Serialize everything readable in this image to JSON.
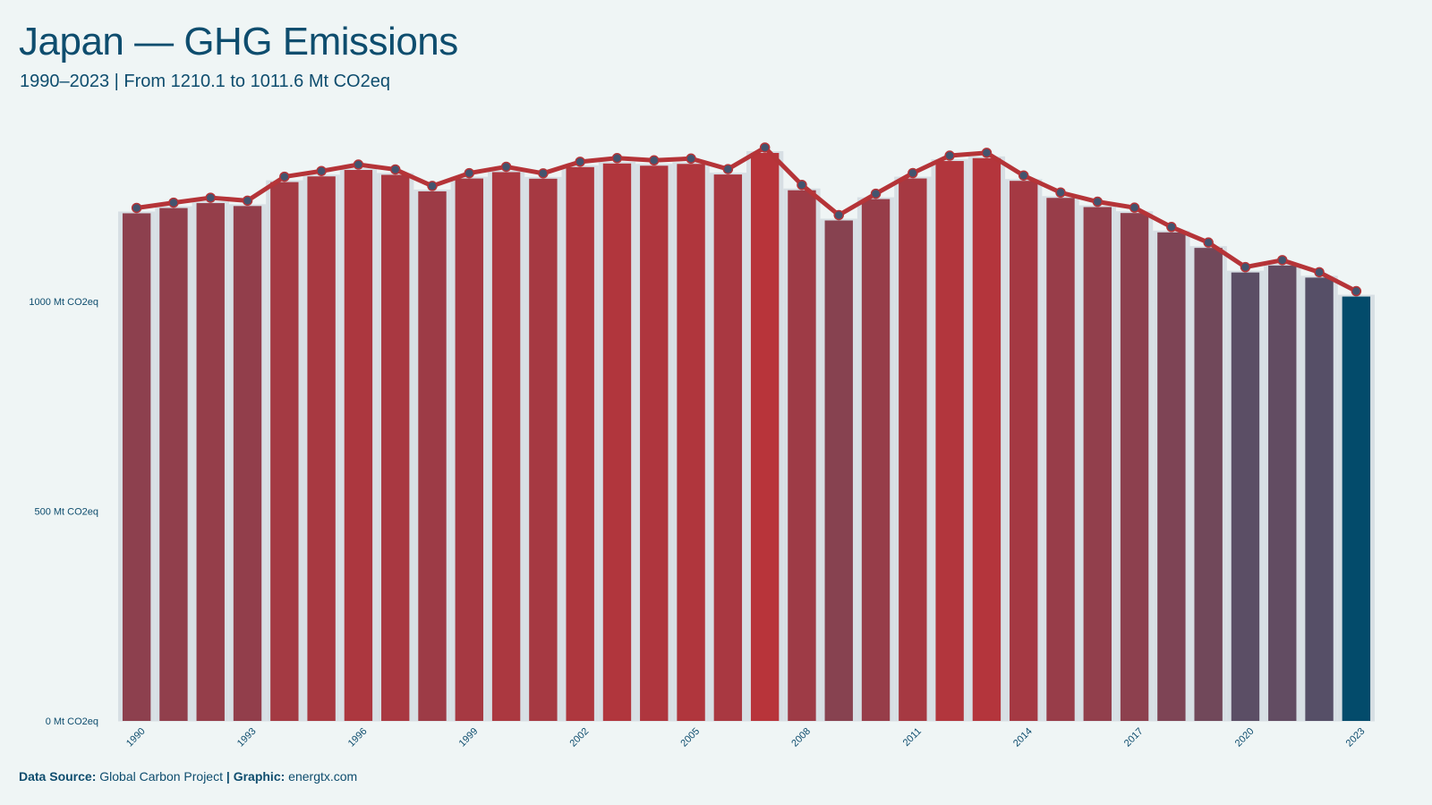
{
  "header": {
    "title": "Japan — GHG Emissions",
    "subtitle": "1990–2023 | From 1210.1  to 1011.6  Mt CO2eq"
  },
  "footer": {
    "source_label": "Data Source:",
    "source_value": "Global Carbon Project",
    "separator": "|",
    "graphic_label": "Graphic:",
    "graphic_value": "energtx.com"
  },
  "colors": {
    "background": "#eff5f5",
    "line": "#b53438",
    "marker": "#44546e",
    "high": "#b8343a",
    "low": "#034b6b",
    "grid": "#d8dfe3",
    "text": "#0e4d6e"
  },
  "chart_data": {
    "type": "bar",
    "categories": [
      "1990",
      "1991",
      "1992",
      "1993",
      "1994",
      "1995",
      "1996",
      "1997",
      "1998",
      "1999",
      "2000",
      "2001",
      "2002",
      "2003",
      "2004",
      "2005",
      "2006",
      "2007",
      "2008",
      "2009",
      "2010",
      "2011",
      "2012",
      "2013",
      "2014",
      "2015",
      "2016",
      "2017",
      "2018",
      "2019",
      "2020",
      "2021",
      "2022",
      "2023"
    ],
    "values": [
      1210.1,
      1222.6,
      1234.4,
      1227.4,
      1284.5,
      1298.0,
      1313.4,
      1301.8,
      1262.4,
      1293.0,
      1308.2,
      1292.5,
      1320.2,
      1328.8,
      1323.5,
      1327.8,
      1302.6,
      1354.0,
      1265.0,
      1193.0,
      1244.0,
      1293.1,
      1334.7,
      1341.5,
      1287.4,
      1246.8,
      1224.9,
      1210.7,
      1164.6,
      1127.6,
      1069.0,
      1085.6,
      1056.8,
      1011.6
    ],
    "overlay_line": true,
    "xticks": [
      "1990",
      "1993",
      "1996",
      "1999",
      "2002",
      "2005",
      "2008",
      "2011",
      "2014",
      "2017",
      "2020",
      "2023"
    ],
    "yticks": [
      {
        "value": 0,
        "label": "0 Mt CO2eq"
      },
      {
        "value": 500,
        "label": "500 Mt CO2eq"
      },
      {
        "value": 1000,
        "label": "1000 Mt CO2eq"
      }
    ],
    "ylim": [
      0,
      1400
    ],
    "grid": true,
    "legend": "none"
  }
}
